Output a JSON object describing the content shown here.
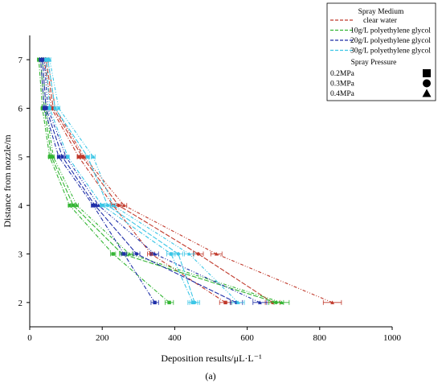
{
  "chart_data": {
    "type": "line",
    "xlabel": "Deposition results/μL·L⁻¹",
    "ylabel": "Distance from nozzle/m",
    "caption": "(a)",
    "xlim": [
      0,
      1000
    ],
    "ylim": [
      1.5,
      7.5
    ],
    "xticks": [
      0,
      200,
      400,
      600,
      800,
      1000
    ],
    "yticks": [
      2,
      3,
      4,
      5,
      6,
      7
    ],
    "legend": {
      "placement": "top-right",
      "medium_title": "Spray Medium",
      "pressure_title": "Spray Pressure",
      "media": [
        {
          "name": "clear water",
          "color": "#c0392b"
        },
        {
          "name": "10g/L polyethylene glycol",
          "color": "#33b533"
        },
        {
          "name": "20g/L polyethylene glycol",
          "color": "#1f2fa8"
        },
        {
          "name": "30g/L polyethylene glycol",
          "color": "#3cc6e6"
        }
      ],
      "pressures": [
        {
          "name": "0.2MPa",
          "marker": "square"
        },
        {
          "name": "0.3MPa",
          "marker": "circle"
        },
        {
          "name": "0.4MPa",
          "marker": "triangle"
        }
      ]
    },
    "y": [
      2,
      3,
      4,
      5,
      6,
      7
    ],
    "series": [
      {
        "medium": "clear water",
        "pressure": "0.2MPa",
        "x": [
          540,
          335,
          230,
          135,
          60,
          40
        ],
        "color": "#c0392b"
      },
      {
        "medium": "clear water",
        "pressure": "0.3MPa",
        "x": [
          670,
          465,
          245,
          145,
          65,
          45
        ],
        "color": "#c0392b"
      },
      {
        "medium": "clear water",
        "pressure": "0.4MPa",
        "x": [
          835,
          515,
          260,
          150,
          70,
          50
        ],
        "color": "#c0392b"
      },
      {
        "medium": "10g/L polyethylene glycol",
        "pressure": "0.2MPa",
        "x": [
          385,
          230,
          110,
          55,
          35,
          25
        ],
        "color": "#33b533"
      },
      {
        "medium": "10g/L polyethylene glycol",
        "pressure": "0.3MPa",
        "x": [
          680,
          255,
          120,
          60,
          40,
          30
        ],
        "color": "#33b533"
      },
      {
        "medium": "10g/L polyethylene glycol",
        "pressure": "0.4MPa",
        "x": [
          695,
          275,
          130,
          65,
          45,
          35
        ],
        "color": "#33b533"
      },
      {
        "medium": "20g/L polyethylene glycol",
        "pressure": "0.2MPa",
        "x": [
          345,
          260,
          175,
          80,
          40,
          30
        ],
        "color": "#1f2fa8"
      },
      {
        "medium": "20g/L polyethylene glycol",
        "pressure": "0.3MPa",
        "x": [
          570,
          295,
          180,
          90,
          45,
          35
        ],
        "color": "#1f2fa8"
      },
      {
        "medium": "20g/L polyethylene glycol",
        "pressure": "0.4MPa",
        "x": [
          635,
          345,
          190,
          100,
          50,
          40
        ],
        "color": "#1f2fa8"
      },
      {
        "medium": "30g/L polyethylene glycol",
        "pressure": "0.2MPa",
        "x": [
          450,
          390,
          200,
          105,
          55,
          45
        ],
        "color": "#3cc6e6"
      },
      {
        "medium": "30g/L polyethylene glycol",
        "pressure": "0.3MPa",
        "x": [
          455,
          410,
          215,
          160,
          70,
          50
        ],
        "color": "#3cc6e6"
      },
      {
        "medium": "30g/L polyethylene glycol",
        "pressure": "0.4MPa",
        "x": [
          575,
          440,
          230,
          175,
          80,
          55
        ],
        "color": "#3cc6e6"
      }
    ]
  }
}
